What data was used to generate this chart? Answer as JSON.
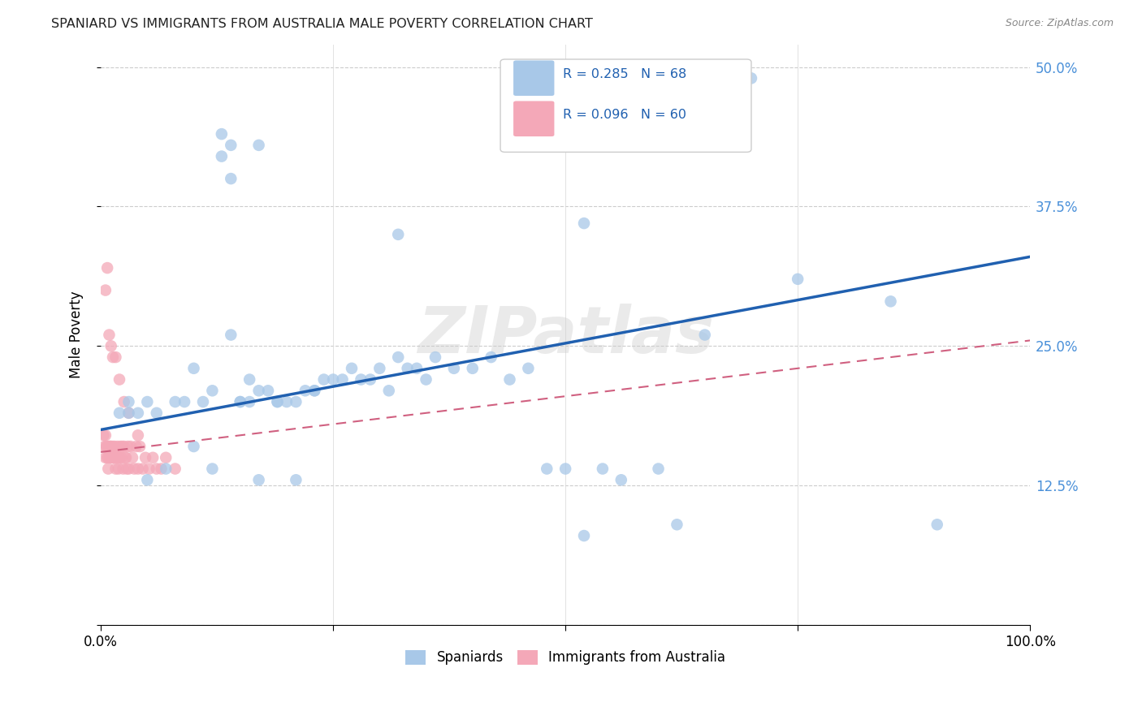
{
  "title": "SPANIARD VS IMMIGRANTS FROM AUSTRALIA MALE POVERTY CORRELATION CHART",
  "source": "Source: ZipAtlas.com",
  "ylabel": "Male Poverty",
  "ytick_vals": [
    0.0,
    0.125,
    0.25,
    0.375,
    0.5
  ],
  "ytick_labels": [
    "",
    "12.5%",
    "25.0%",
    "37.5%",
    "50.0%"
  ],
  "color_blue": "#a8c8e8",
  "color_pink": "#f4a8b8",
  "color_line_blue": "#2060b0",
  "color_line_pink": "#d06080",
  "watermark": "ZIPatlas",
  "xlim": [
    0.0,
    1.0
  ],
  "ylim": [
    0.0,
    0.52
  ],
  "blue_line_x0": 0.0,
  "blue_line_y0": 0.175,
  "blue_line_x1": 1.0,
  "blue_line_y1": 0.33,
  "pink_line_x0": 0.0,
  "pink_line_y0": 0.155,
  "pink_line_x1": 1.0,
  "pink_line_y1": 0.255,
  "spaniards_x": [
    0.02,
    0.03,
    0.04,
    0.05,
    0.06,
    0.08,
    0.09,
    0.1,
    0.11,
    0.12,
    0.13,
    0.14,
    0.15,
    0.16,
    0.16,
    0.17,
    0.18,
    0.19,
    0.2,
    0.21,
    0.22,
    0.23,
    0.23,
    0.24,
    0.25,
    0.26,
    0.27,
    0.28,
    0.29,
    0.3,
    0.31,
    0.32,
    0.33,
    0.34,
    0.35,
    0.36,
    0.38,
    0.4,
    0.42,
    0.44,
    0.46,
    0.48,
    0.5,
    0.52,
    0.54,
    0.56,
    0.6,
    0.62,
    0.65,
    0.7,
    0.75,
    0.85,
    0.9,
    0.03,
    0.05,
    0.07,
    0.1,
    0.12,
    0.14,
    0.15,
    0.17,
    0.19,
    0.21,
    0.13,
    0.14,
    0.17,
    0.32,
    0.52
  ],
  "spaniards_y": [
    0.19,
    0.2,
    0.19,
    0.2,
    0.19,
    0.2,
    0.2,
    0.23,
    0.2,
    0.21,
    0.44,
    0.43,
    0.2,
    0.2,
    0.22,
    0.21,
    0.21,
    0.2,
    0.2,
    0.2,
    0.21,
    0.21,
    0.21,
    0.22,
    0.22,
    0.22,
    0.23,
    0.22,
    0.22,
    0.23,
    0.21,
    0.24,
    0.23,
    0.23,
    0.22,
    0.24,
    0.23,
    0.23,
    0.24,
    0.22,
    0.23,
    0.14,
    0.14,
    0.08,
    0.14,
    0.13,
    0.14,
    0.09,
    0.26,
    0.49,
    0.31,
    0.29,
    0.09,
    0.19,
    0.13,
    0.14,
    0.16,
    0.14,
    0.26,
    0.2,
    0.13,
    0.2,
    0.13,
    0.42,
    0.4,
    0.43,
    0.35,
    0.36
  ],
  "australia_x": [
    0.003,
    0.004,
    0.005,
    0.005,
    0.006,
    0.007,
    0.007,
    0.008,
    0.008,
    0.009,
    0.01,
    0.01,
    0.011,
    0.012,
    0.012,
    0.013,
    0.014,
    0.015,
    0.015,
    0.016,
    0.017,
    0.018,
    0.018,
    0.019,
    0.02,
    0.02,
    0.021,
    0.022,
    0.023,
    0.024,
    0.025,
    0.026,
    0.027,
    0.028,
    0.029,
    0.03,
    0.032,
    0.034,
    0.036,
    0.038,
    0.04,
    0.042,
    0.045,
    0.048,
    0.052,
    0.056,
    0.06,
    0.065,
    0.07,
    0.08,
    0.005,
    0.007,
    0.009,
    0.011,
    0.013,
    0.016,
    0.02,
    0.025,
    0.03,
    0.04
  ],
  "australia_y": [
    0.17,
    0.16,
    0.17,
    0.15,
    0.16,
    0.16,
    0.15,
    0.15,
    0.14,
    0.16,
    0.15,
    0.16,
    0.16,
    0.15,
    0.15,
    0.16,
    0.15,
    0.16,
    0.15,
    0.14,
    0.15,
    0.16,
    0.15,
    0.14,
    0.15,
    0.15,
    0.16,
    0.15,
    0.16,
    0.14,
    0.16,
    0.15,
    0.15,
    0.14,
    0.16,
    0.14,
    0.16,
    0.15,
    0.14,
    0.16,
    0.14,
    0.16,
    0.14,
    0.15,
    0.14,
    0.15,
    0.14,
    0.14,
    0.15,
    0.14,
    0.3,
    0.32,
    0.26,
    0.25,
    0.24,
    0.24,
    0.22,
    0.2,
    0.19,
    0.17
  ]
}
